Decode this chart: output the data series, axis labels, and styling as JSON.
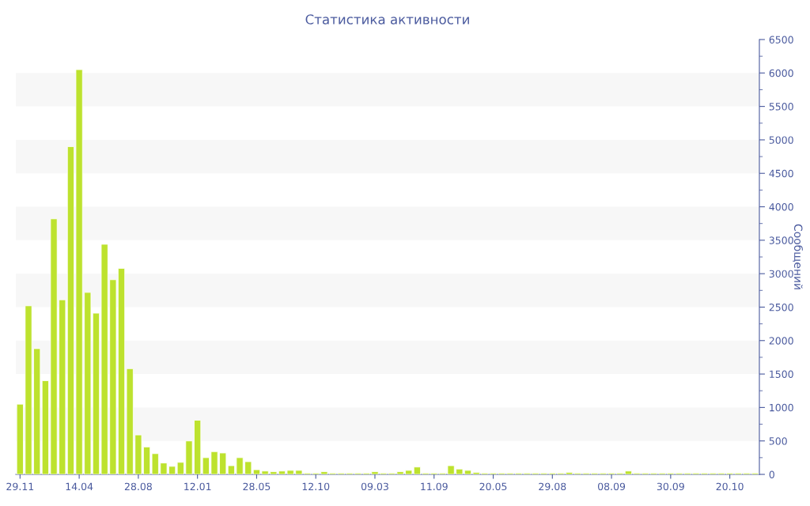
{
  "chart_data": {
    "type": "bar",
    "title": "Статистика активности",
    "ylabel": "Сообщений",
    "categories": [
      "29.11",
      null,
      null,
      null,
      null,
      null,
      null,
      "14.04",
      null,
      null,
      null,
      null,
      null,
      null,
      "28.08",
      null,
      null,
      null,
      null,
      null,
      null,
      "12.01",
      null,
      null,
      null,
      null,
      null,
      null,
      "28.05",
      null,
      null,
      null,
      null,
      null,
      null,
      "12.10",
      null,
      null,
      null,
      null,
      null,
      null,
      "09.03",
      null,
      null,
      null,
      null,
      null,
      null,
      "11.09",
      null,
      null,
      null,
      null,
      null,
      null,
      "20.05",
      null,
      null,
      null,
      null,
      null,
      null,
      "29.08",
      null,
      null,
      null,
      null,
      null,
      null,
      "08.09",
      null,
      null,
      null,
      null,
      null,
      null,
      "30.09",
      null,
      null,
      null,
      null,
      null,
      null,
      "20.10",
      null,
      null,
      null
    ],
    "values": [
      1050,
      2520,
      1880,
      1400,
      3820,
      2610,
      4900,
      6050,
      2720,
      2410,
      3440,
      2910,
      3080,
      1580,
      590,
      410,
      310,
      170,
      120,
      180,
      500,
      810,
      250,
      340,
      320,
      130,
      250,
      190,
      70,
      50,
      40,
      50,
      60,
      60,
      20,
      20,
      40,
      20,
      20,
      20,
      20,
      20,
      40,
      20,
      20,
      40,
      60,
      110,
      20,
      20,
      20,
      130,
      80,
      60,
      30,
      20,
      20,
      20,
      20,
      20,
      20,
      20,
      20,
      20,
      20,
      30,
      20,
      20,
      20,
      20,
      20,
      20,
      50,
      20,
      20,
      20,
      20,
      20,
      20,
      20,
      20,
      20,
      20,
      20,
      20,
      20,
      20,
      20
    ],
    "color": "#bde22e",
    "ylim": [
      0,
      6500
    ],
    "yticks": [
      0,
      500,
      1000,
      1500,
      2000,
      2500,
      3000,
      3500,
      4000,
      4500,
      5000,
      5500,
      6000,
      6500
    ],
    "bands": [
      {
        "axis": "y",
        "from": 500,
        "to": 1000,
        "color": "#f7f7f7"
      },
      {
        "axis": "y",
        "from": 1500,
        "to": 2000,
        "color": "#f7f7f7"
      },
      {
        "axis": "y",
        "from": 2500,
        "to": 3000,
        "color": "#f7f7f7"
      },
      {
        "axis": "y",
        "from": 3500,
        "to": 4000,
        "color": "#f7f7f7"
      },
      {
        "axis": "y",
        "from": 4500,
        "to": 5000,
        "color": "#f7f7f7"
      },
      {
        "axis": "y",
        "from": 5500,
        "to": 6000,
        "color": "#f7f7f7"
      }
    ],
    "grid": false,
    "legend": false
  }
}
